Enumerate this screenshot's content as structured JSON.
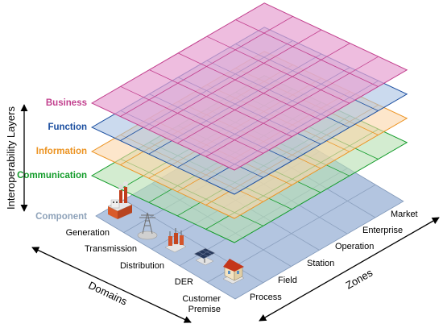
{
  "axis_title": "Interoperability Layers",
  "layers": [
    {
      "key": "business",
      "label": "Business",
      "color": "#c2408e",
      "fill": "#e7a3d3",
      "fill_opacity": 0.72
    },
    {
      "key": "function",
      "label": "Function",
      "color": "#1c4fa0",
      "fill": "#a9c1e3",
      "fill_opacity": 0.6
    },
    {
      "key": "information",
      "label": "Information",
      "color": "#ec9423",
      "fill": "#fbd5a8",
      "fill_opacity": 0.6
    },
    {
      "key": "communication",
      "label": "Communication",
      "color": "#139c2a",
      "fill": "#b5dfb1",
      "fill_opacity": 0.6
    },
    {
      "key": "component",
      "label": "Component",
      "color": "#8fa3ba",
      "fill": "#b3c5e0",
      "fill_opacity": 1.0
    }
  ],
  "domains": {
    "title": "Domains",
    "items": [
      "Generation",
      "Transmission",
      "Distribution",
      "DER",
      "Customer\nPremise"
    ]
  },
  "zones": {
    "title": "Zones",
    "items": [
      "Process",
      "Field",
      "Station",
      "Operation",
      "Enterprise",
      "Market"
    ]
  },
  "component_icons": [
    "power-plant-icon",
    "transmission-tower-icon",
    "substation-icon",
    "solar-panel-icon",
    "house-icon"
  ]
}
